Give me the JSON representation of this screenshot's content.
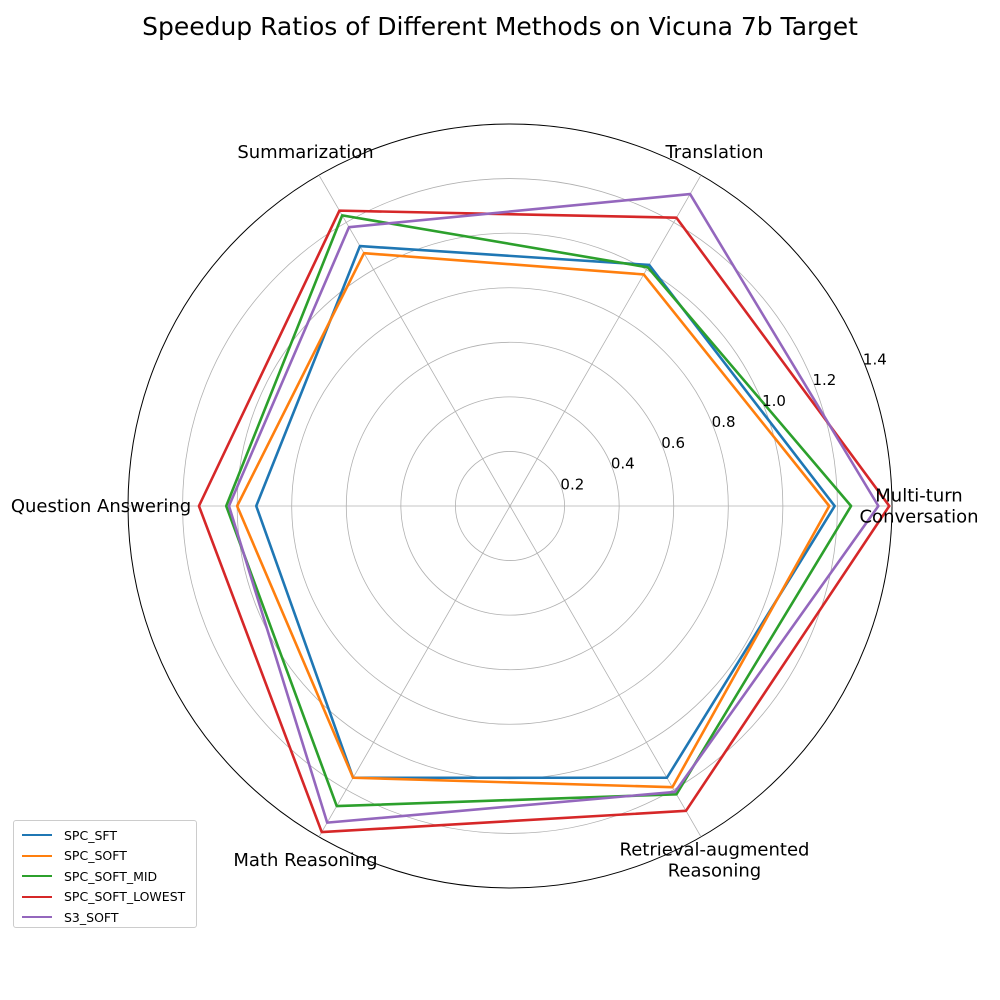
{
  "chart_data": {
    "type": "radar",
    "title": "Speedup Ratios of Different Methods on Vicuna 7b Target",
    "categories": [
      "Multi-turn\nConversation",
      "Translation",
      "Summarization",
      "Question Answering",
      "Math Reasoning",
      "Retrieval-augmented\nReasoning"
    ],
    "rlim": [
      0,
      1.4
    ],
    "rticks": [
      0.2,
      0.4,
      0.6,
      0.8,
      1.0,
      1.2,
      1.4
    ],
    "rtick_labels": [
      "0.2",
      "0.4",
      "0.6",
      "0.8",
      "1.0",
      "1.2",
      "1.4"
    ],
    "grid": true,
    "legend_position": "lower-left",
    "series": [
      {
        "name": "SPC_SFT",
        "color": "#1f77b4",
        "values": [
          1.19,
          1.02,
          1.1,
          0.93,
          1.15,
          1.15
        ]
      },
      {
        "name": "SPC_SOFT",
        "color": "#ff7f0e",
        "values": [
          1.17,
          0.98,
          1.07,
          1.0,
          1.15,
          1.19
        ]
      },
      {
        "name": "SPC_SOFT_MID",
        "color": "#2ca02c",
        "values": [
          1.25,
          1.01,
          1.23,
          1.04,
          1.27,
          1.22
        ]
      },
      {
        "name": "SPC_SOFT_LOWEST",
        "color": "#d62728",
        "values": [
          1.39,
          1.22,
          1.25,
          1.14,
          1.38,
          1.29
        ]
      },
      {
        "name": "S3_SOFT",
        "color": "#9467bd",
        "values": [
          1.35,
          1.32,
          1.18,
          1.03,
          1.34,
          1.21
        ]
      }
    ]
  }
}
